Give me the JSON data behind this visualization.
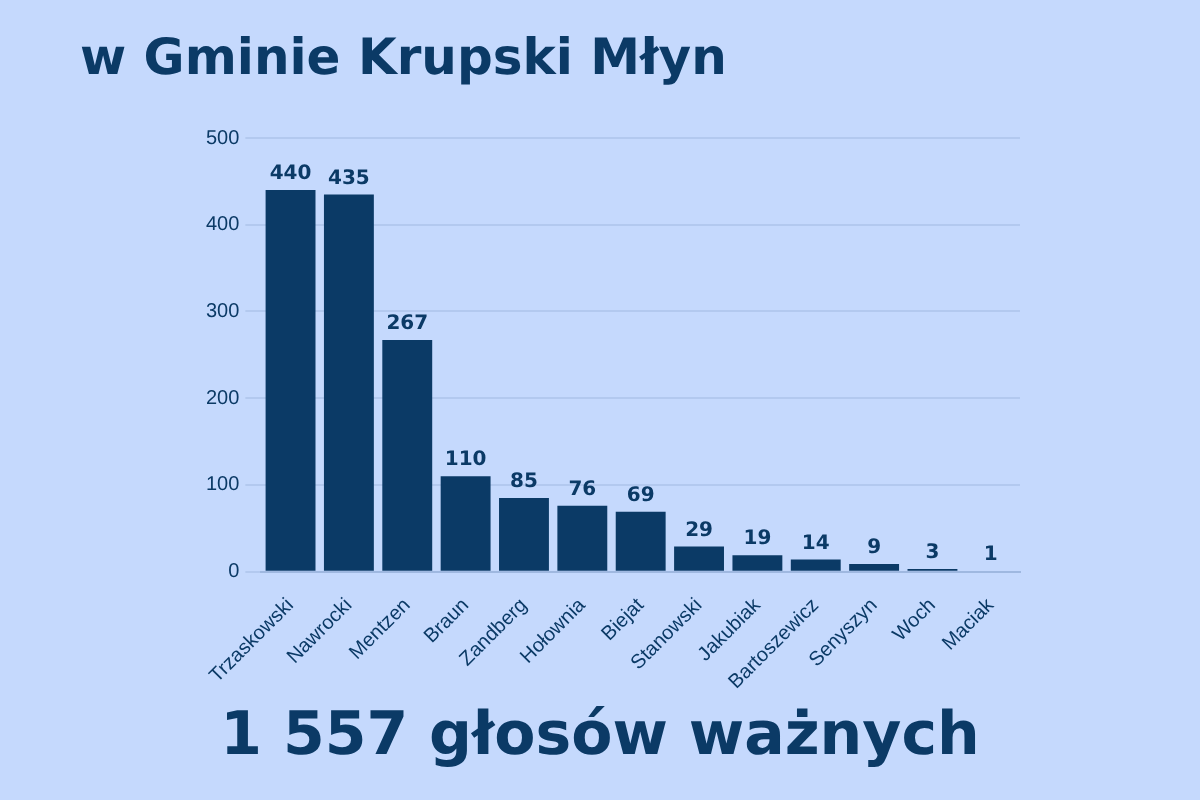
{
  "chart_data": {
    "type": "bar",
    "title": "w Gminie Krupski Młyn",
    "categories": [
      "Trzaskowski",
      "Nawrocki",
      "Mentzen",
      "Braun",
      "Zandberg",
      "Hołownia",
      "Biejat",
      "Stanowski",
      "Jakubiak",
      "Bartoszewicz",
      "Senyszyn",
      "Woch",
      "Maciak"
    ],
    "values": [
      440,
      435,
      267,
      110,
      85,
      76,
      69,
      29,
      19,
      14,
      9,
      3,
      1
    ],
    "color": "#0b3a66",
    "ylim": [
      0,
      500
    ],
    "yticks": [
      0,
      100,
      200,
      300,
      400,
      500
    ],
    "grid": "y",
    "data_labels": true,
    "annotations": [
      "1 557 głosów ważnych"
    ]
  }
}
